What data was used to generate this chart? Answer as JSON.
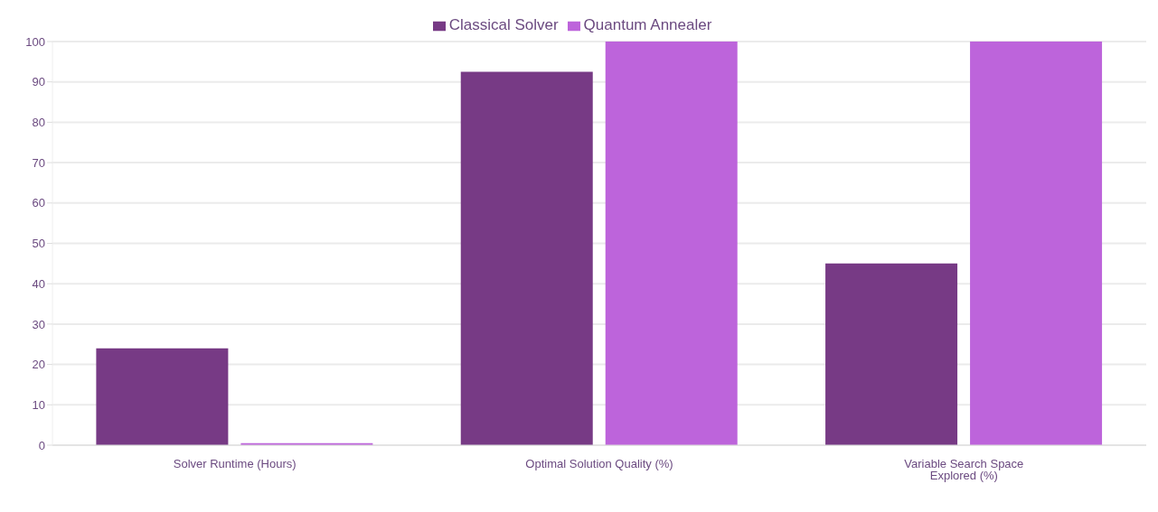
{
  "chart_data": {
    "type": "bar",
    "categories": [
      "Solver Runtime (Hours)",
      "Optimal Solution Quality (%)",
      "Variable Search Space Explored (%)"
    ],
    "series": [
      {
        "name": "Classical Solver",
        "color": "#773a85",
        "values": [
          24,
          92.5,
          45
        ]
      },
      {
        "name": "Quantum Annealer",
        "color": "#bd64db",
        "values": [
          0.5,
          100,
          100
        ]
      }
    ],
    "ylim": [
      0,
      100
    ],
    "yticks": [
      0,
      10,
      20,
      30,
      40,
      50,
      60,
      70,
      80,
      90,
      100
    ],
    "grid": "y",
    "legend": "top"
  }
}
